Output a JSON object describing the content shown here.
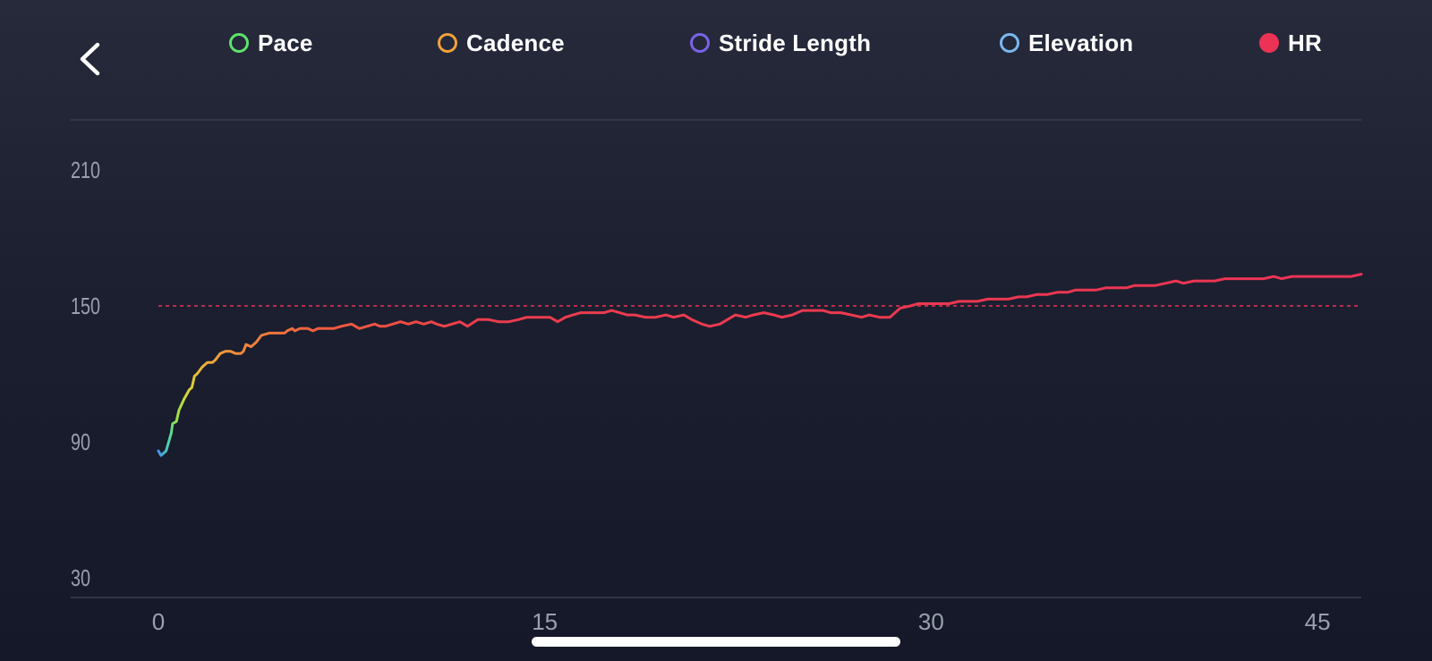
{
  "nav": {
    "back_icon": "chevron-left-icon"
  },
  "legend": [
    {
      "key": "pace",
      "label": "Pace",
      "color": "#5ee36a",
      "filled": false
    },
    {
      "key": "cadence",
      "label": "Cadence",
      "color": "#f0a33a",
      "filled": false
    },
    {
      "key": "stride",
      "label": "Stride Length",
      "color": "#7a63e8",
      "filled": false
    },
    {
      "key": "elevation",
      "label": "Elevation",
      "color": "#79b8f0",
      "filled": false
    },
    {
      "key": "hr",
      "label": "HR",
      "color": "#ec3355",
      "filled": true
    }
  ],
  "colors": {
    "axis_text": "#9aa0ad",
    "border": "#3a3f50",
    "average_line": "#ec3355"
  },
  "chart_data": {
    "type": "line",
    "xlim": [
      0,
      46.7
    ],
    "ylim": [
      30,
      210
    ],
    "x_ticks": [
      "0",
      "15",
      "30",
      "45"
    ],
    "x_tick_values": [
      0,
      15,
      30,
      45
    ],
    "y_ticks": [
      "210",
      "150",
      "90",
      "30"
    ],
    "y_tick_values": [
      210,
      150,
      90,
      30
    ],
    "reference_line": {
      "y": 150,
      "style": "dashed"
    },
    "series": [
      {
        "name": "HR",
        "points": [
          [
            0.0,
            86
          ],
          [
            0.1,
            84
          ],
          [
            0.3,
            86
          ],
          [
            0.5,
            94
          ],
          [
            0.55,
            98
          ],
          [
            0.7,
            99
          ],
          [
            0.8,
            104
          ],
          [
            1.0,
            109
          ],
          [
            1.1,
            111
          ],
          [
            1.2,
            113
          ],
          [
            1.3,
            114
          ],
          [
            1.4,
            119
          ],
          [
            1.5,
            120
          ],
          [
            1.7,
            123
          ],
          [
            1.9,
            125
          ],
          [
            2.1,
            125
          ],
          [
            2.2,
            126
          ],
          [
            2.4,
            129
          ],
          [
            2.6,
            130
          ],
          [
            2.8,
            130
          ],
          [
            3.0,
            129
          ],
          [
            3.2,
            129
          ],
          [
            3.3,
            130
          ],
          [
            3.4,
            133
          ],
          [
            3.6,
            132
          ],
          [
            3.8,
            134
          ],
          [
            4.0,
            137
          ],
          [
            4.3,
            138
          ],
          [
            4.6,
            138
          ],
          [
            4.9,
            138
          ],
          [
            5.0,
            139
          ],
          [
            5.2,
            140
          ],
          [
            5.3,
            139
          ],
          [
            5.5,
            140
          ],
          [
            5.8,
            140
          ],
          [
            6.0,
            139
          ],
          [
            6.2,
            140
          ],
          [
            6.5,
            140
          ],
          [
            6.8,
            140
          ],
          [
            7.1,
            141
          ],
          [
            7.5,
            142
          ],
          [
            7.8,
            140
          ],
          [
            8.1,
            141
          ],
          [
            8.4,
            142
          ],
          [
            8.6,
            141
          ],
          [
            8.8,
            141
          ],
          [
            9.1,
            142
          ],
          [
            9.4,
            143
          ],
          [
            9.7,
            142
          ],
          [
            10.0,
            143
          ],
          [
            10.3,
            142
          ],
          [
            10.6,
            143
          ],
          [
            10.8,
            142
          ],
          [
            11.1,
            141
          ],
          [
            11.4,
            142
          ],
          [
            11.7,
            143
          ],
          [
            12.0,
            141
          ],
          [
            12.4,
            144
          ],
          [
            12.8,
            144
          ],
          [
            13.2,
            143
          ],
          [
            13.6,
            143
          ],
          [
            14.0,
            144
          ],
          [
            14.3,
            145
          ],
          [
            14.8,
            145
          ],
          [
            15.2,
            145
          ],
          [
            15.5,
            143
          ],
          [
            15.8,
            145
          ],
          [
            16.1,
            146
          ],
          [
            16.4,
            147
          ],
          [
            16.7,
            147
          ],
          [
            17.0,
            147
          ],
          [
            17.3,
            147
          ],
          [
            17.6,
            148
          ],
          [
            17.9,
            147
          ],
          [
            18.2,
            146
          ],
          [
            18.5,
            146
          ],
          [
            18.9,
            145
          ],
          [
            19.3,
            145
          ],
          [
            19.7,
            146
          ],
          [
            20.0,
            145
          ],
          [
            20.4,
            146
          ],
          [
            20.7,
            144
          ],
          [
            21.1,
            142
          ],
          [
            21.4,
            141
          ],
          [
            21.8,
            142
          ],
          [
            22.1,
            144
          ],
          [
            22.4,
            146
          ],
          [
            22.8,
            145
          ],
          [
            23.1,
            146
          ],
          [
            23.5,
            147
          ],
          [
            23.9,
            146
          ],
          [
            24.2,
            145
          ],
          [
            24.6,
            146
          ],
          [
            25.0,
            148
          ],
          [
            25.4,
            148
          ],
          [
            25.8,
            148
          ],
          [
            26.1,
            147
          ],
          [
            26.5,
            147
          ],
          [
            26.9,
            146
          ],
          [
            27.3,
            145
          ],
          [
            27.6,
            146
          ],
          [
            28.0,
            145
          ],
          [
            28.4,
            145
          ],
          [
            28.8,
            149
          ],
          [
            29.2,
            150
          ],
          [
            29.5,
            151
          ],
          [
            29.9,
            151
          ],
          [
            30.3,
            151
          ],
          [
            30.7,
            151
          ],
          [
            31.1,
            152
          ],
          [
            31.4,
            152
          ],
          [
            31.8,
            152
          ],
          [
            32.2,
            153
          ],
          [
            32.6,
            153
          ],
          [
            33.0,
            153
          ],
          [
            33.4,
            154
          ],
          [
            33.7,
            154
          ],
          [
            34.1,
            155
          ],
          [
            34.5,
            155
          ],
          [
            34.9,
            156
          ],
          [
            35.3,
            156
          ],
          [
            35.6,
            157
          ],
          [
            36.0,
            157
          ],
          [
            36.4,
            157
          ],
          [
            36.8,
            158
          ],
          [
            37.2,
            158
          ],
          [
            37.6,
            158
          ],
          [
            37.9,
            159
          ],
          [
            38.3,
            159
          ],
          [
            38.7,
            159
          ],
          [
            39.1,
            160
          ],
          [
            39.5,
            161
          ],
          [
            39.8,
            160
          ],
          [
            40.2,
            161
          ],
          [
            40.6,
            161
          ],
          [
            41.0,
            161
          ],
          [
            41.4,
            162
          ],
          [
            41.7,
            162
          ],
          [
            42.1,
            162
          ],
          [
            42.5,
            162
          ],
          [
            42.9,
            162
          ],
          [
            43.3,
            163
          ],
          [
            43.6,
            162
          ],
          [
            44.0,
            163
          ],
          [
            44.4,
            163
          ],
          [
            44.8,
            163
          ],
          [
            45.2,
            163
          ],
          [
            45.5,
            163
          ],
          [
            45.9,
            163
          ],
          [
            46.3,
            163
          ],
          [
            46.7,
            164
          ]
        ],
        "gradient_stops": [
          {
            "x": 0.0,
            "color": "#4a8ff0"
          },
          {
            "x": 0.45,
            "color": "#4fd9a0"
          },
          {
            "x": 0.65,
            "color": "#8fe04a"
          },
          {
            "x": 1.1,
            "color": "#d4d63a"
          },
          {
            "x": 1.8,
            "color": "#f0ad3a"
          },
          {
            "x": 3.0,
            "color": "#f18b3a"
          },
          {
            "x": 6.0,
            "color": "#ef5f3f"
          },
          {
            "x": 12.0,
            "color": "#ec3d4c"
          },
          {
            "x": 46.7,
            "color": "#ec3355"
          }
        ]
      }
    ]
  }
}
